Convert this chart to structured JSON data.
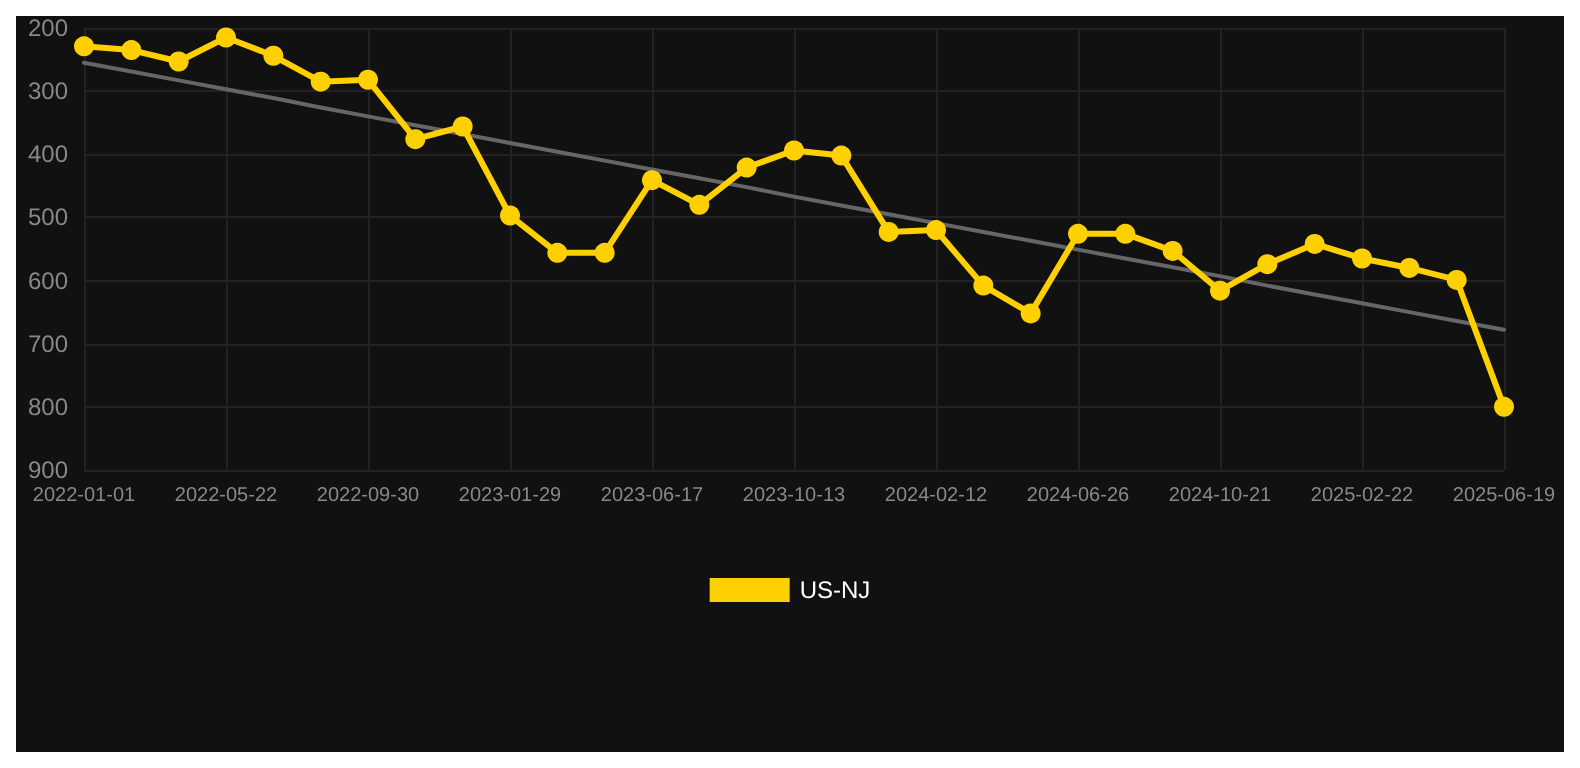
{
  "chart_data": {
    "type": "line",
    "categories": [
      "2022-01-01",
      null,
      null,
      "2022-05-22",
      null,
      null,
      "2022-09-30",
      null,
      null,
      "2023-01-29",
      null,
      null,
      "2023-06-17",
      null,
      null,
      "2023-10-13",
      null,
      null,
      "2024-02-12",
      null,
      null,
      "2024-06-26",
      null,
      null,
      "2024-10-21",
      null,
      null,
      "2025-02-22",
      null,
      null,
      "2025-06-19"
    ],
    "series": [
      {
        "name": "US-NJ",
        "color": "#ffd000",
        "marker": "circle",
        "values": [
          229,
          235,
          253,
          215,
          244,
          285,
          282,
          376,
          356,
          497,
          556,
          556,
          441,
          480,
          421,
          394,
          402,
          523,
          520,
          608,
          652,
          526,
          526,
          553,
          616,
          574,
          542,
          565,
          580,
          599,
          800
        ]
      },
      {
        "color": "#666666",
        "marker": "none",
        "values": [
          255,
          269,
          283,
          297,
          311,
          326,
          340,
          354,
          368,
          382,
          396,
          410,
          424,
          438,
          452,
          467,
          481,
          495,
          509,
          523,
          537,
          551,
          565,
          579,
          593,
          608,
          622,
          636,
          650,
          664,
          678
        ]
      }
    ],
    "ylim": [
      900,
      200
    ],
    "yticks": [
      200,
      300,
      400,
      500,
      600,
      700,
      800,
      900
    ],
    "grid": true,
    "legend": "bottom"
  }
}
